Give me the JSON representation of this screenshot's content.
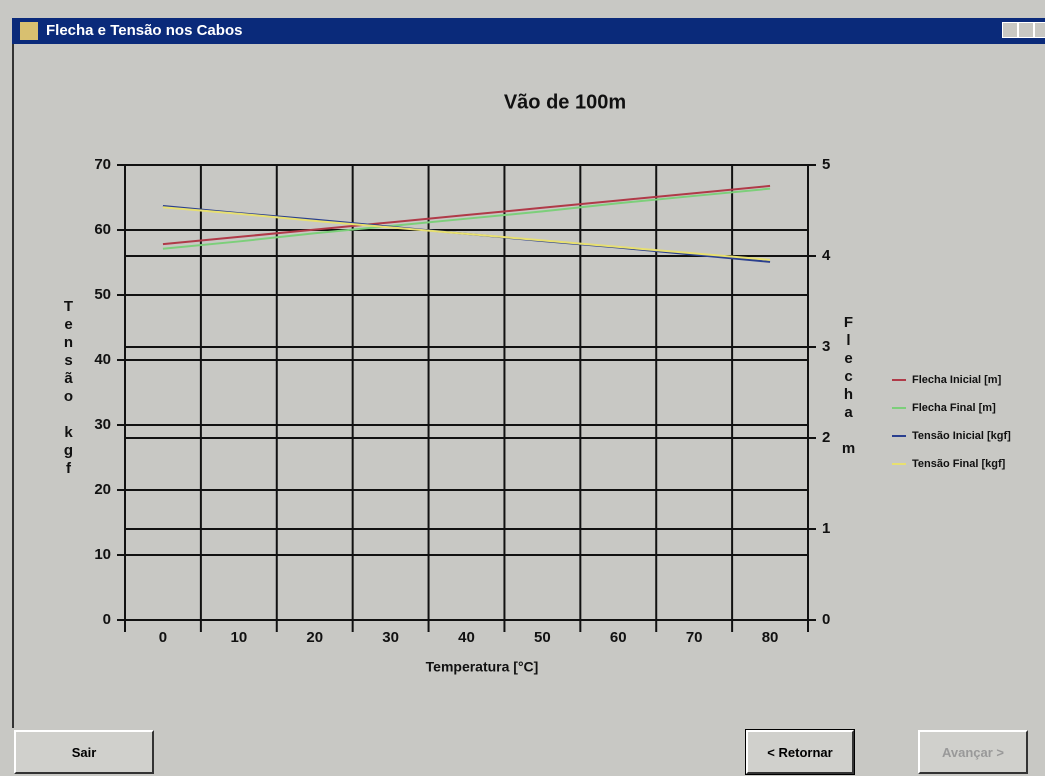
{
  "window": {
    "title": "Flecha e Tensão nos Cabos",
    "buttons": {
      "exit": "Sair",
      "back": "< Retornar",
      "next": "Avançar >"
    }
  },
  "chart_data": {
    "type": "line",
    "title": "Vão de 100m",
    "x_label": "Temperatura [°C]",
    "y_label": "Tensão kgf",
    "y2_label": "Flecha m",
    "categories": [
      "0",
      "10",
      "20",
      "30",
      "40",
      "50",
      "60",
      "70",
      "80"
    ],
    "series": [
      {
        "name": "Flecha Inicial [m]",
        "color": "#b03a48",
        "axis": "y2",
        "values": [
          4.13,
          4.21,
          4.29,
          4.37,
          4.45,
          4.53,
          4.61,
          4.69,
          4.77
        ]
      },
      {
        "name": "Flecha Final [m]",
        "color": "#7ccf7a",
        "axis": "y2",
        "values": [
          4.08,
          4.16,
          4.25,
          4.33,
          4.41,
          4.49,
          4.58,
          4.66,
          4.74
        ]
      },
      {
        "name": "Tensão Inicial [kgf]",
        "color": "#2a3f8f",
        "values": [
          63.7,
          62.6,
          61.6,
          60.5,
          59.4,
          58.3,
          57.3,
          56.2,
          55.1
        ]
      },
      {
        "name": "Tensão Final [kgf]",
        "color": "#e8e070",
        "values": [
          63.5,
          62.5,
          61.4,
          60.4,
          59.4,
          58.4,
          57.4,
          56.4,
          55.4
        ]
      }
    ],
    "ylim": [
      0,
      70
    ],
    "yticks": [
      0,
      10,
      20,
      30,
      40,
      50,
      60,
      70
    ],
    "y2lim": [
      0,
      5
    ],
    "y2ticks": [
      0,
      1,
      2,
      3,
      4,
      5
    ],
    "grid": true,
    "legend": "right"
  }
}
